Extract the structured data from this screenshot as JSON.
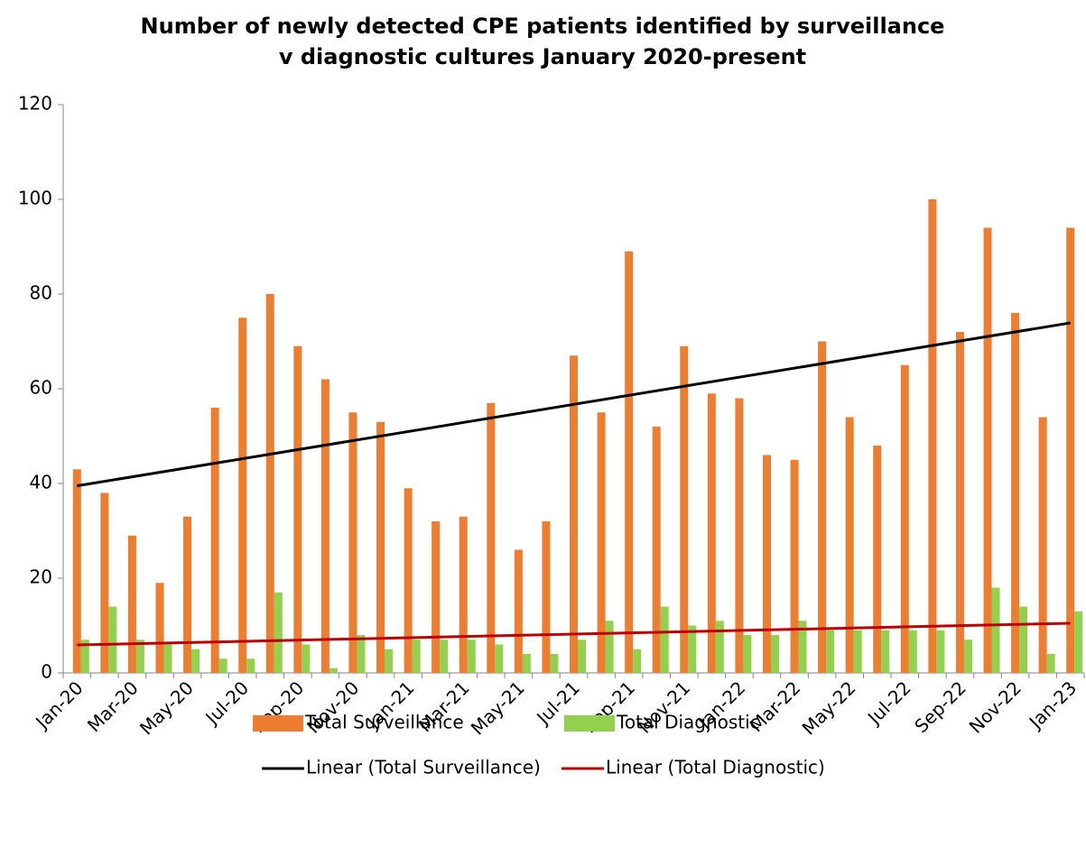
{
  "chart_data": {
    "type": "bar",
    "title": [
      "Number of newly detected CPE patients identified by surveillance",
      "v diagnostic cultures January 2020-present"
    ],
    "categories": [
      "Jan-20",
      null,
      "Mar-20",
      null,
      "May-20",
      null,
      "Jul-20",
      null,
      "Sep-20",
      null,
      "Nov-20",
      null,
      "Jan-21",
      null,
      "Mar-21",
      null,
      "May-21",
      null,
      "Jul-21",
      null,
      "Sep-21",
      null,
      "Nov-21",
      null,
      "Jan-22",
      null,
      "Mar-22",
      null,
      "May-22",
      null,
      "Jul-22",
      null,
      "Sep-22",
      null,
      "Nov-22",
      null,
      "Jan-23"
    ],
    "series": [
      {
        "name": "Total Surveillance",
        "color": "#ed7d31",
        "values": [
          43,
          38,
          29,
          19,
          33,
          56,
          75,
          80,
          69,
          62,
          55,
          53,
          39,
          32,
          33,
          57,
          26,
          32,
          67,
          55,
          89,
          52,
          69,
          59,
          58,
          46,
          45,
          70,
          54,
          48,
          65,
          100,
          72,
          94,
          76,
          54,
          94
        ],
        "trendline": {
          "name": "Linear (Total Surveillance)",
          "color": "#000000"
        }
      },
      {
        "name": "Total Diagnostic",
        "color": "#92d050",
        "values": [
          7,
          14,
          7,
          6,
          5,
          3,
          3,
          17,
          6,
          1,
          8,
          5,
          7,
          7,
          7,
          6,
          4,
          4,
          7,
          11,
          5,
          14,
          10,
          11,
          8,
          8,
          11,
          9,
          9,
          9,
          9,
          9,
          7,
          18,
          14,
          4,
          13
        ],
        "trendline": {
          "name": "Linear (Total Diagnostic)",
          "color": "#c00000"
        }
      }
    ],
    "ylim": [
      0,
      120
    ],
    "yticks": [
      0,
      20,
      40,
      60,
      80,
      100,
      120
    ],
    "grid": false,
    "legend": "bottom"
  }
}
